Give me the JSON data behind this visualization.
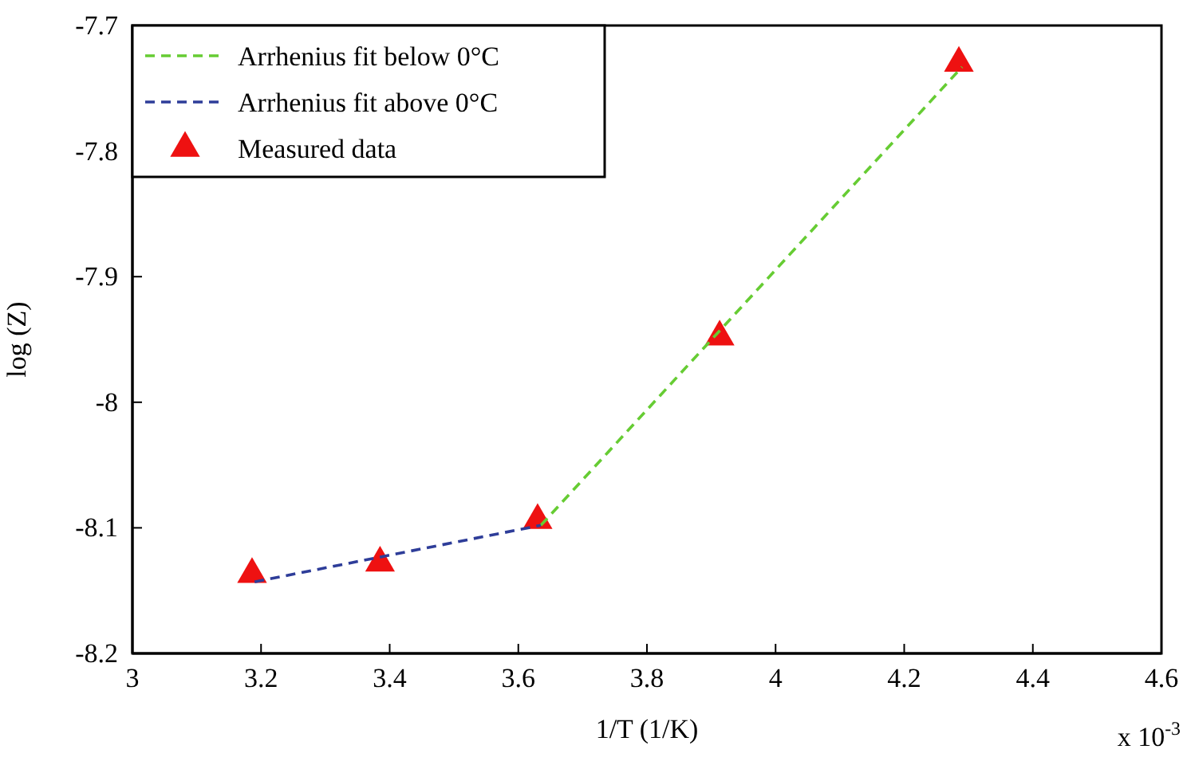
{
  "chart_data": {
    "type": "line",
    "xlabel": "1/T (1/K)",
    "ylabel": "log (Z)",
    "annotations": [
      "x 10$^{-3}$"
    ],
    "xlim": [
      3,
      4.6
    ],
    "xticks": [
      3,
      3.2,
      3.4,
      3.6,
      3.8,
      4,
      4.2,
      4.4,
      4.6
    ],
    "ylim": [
      -8.2,
      -7.7
    ],
    "yticks": [
      -8.2,
      -8.1,
      -8,
      -7.9,
      -7.8,
      -7.7
    ],
    "grid": false,
    "legend": "top left",
    "series": [
      {
        "name": "Arrhenius fit below 0°C",
        "color": "#66cc33",
        "line_style": "dashed",
        "marker": "none",
        "x": [
          3.635,
          4.29
        ],
        "values": [
          -8.098,
          -7.733
        ]
      },
      {
        "name": "Arrhenius fit above 0°C",
        "color": "#2e3d99",
        "line_style": "dashed",
        "marker": "none",
        "x": [
          3.19,
          3.635
        ],
        "values": [
          -8.143,
          -8.098
        ]
      },
      {
        "name": "Measured data",
        "type": "scatter",
        "color": "#ee1111",
        "marker": "triangle",
        "x": [
          3.186,
          3.385,
          3.63,
          3.913,
          4.285
        ],
        "values": [
          -8.137,
          -8.128,
          -8.094,
          -7.948,
          -7.73
        ]
      }
    ]
  }
}
